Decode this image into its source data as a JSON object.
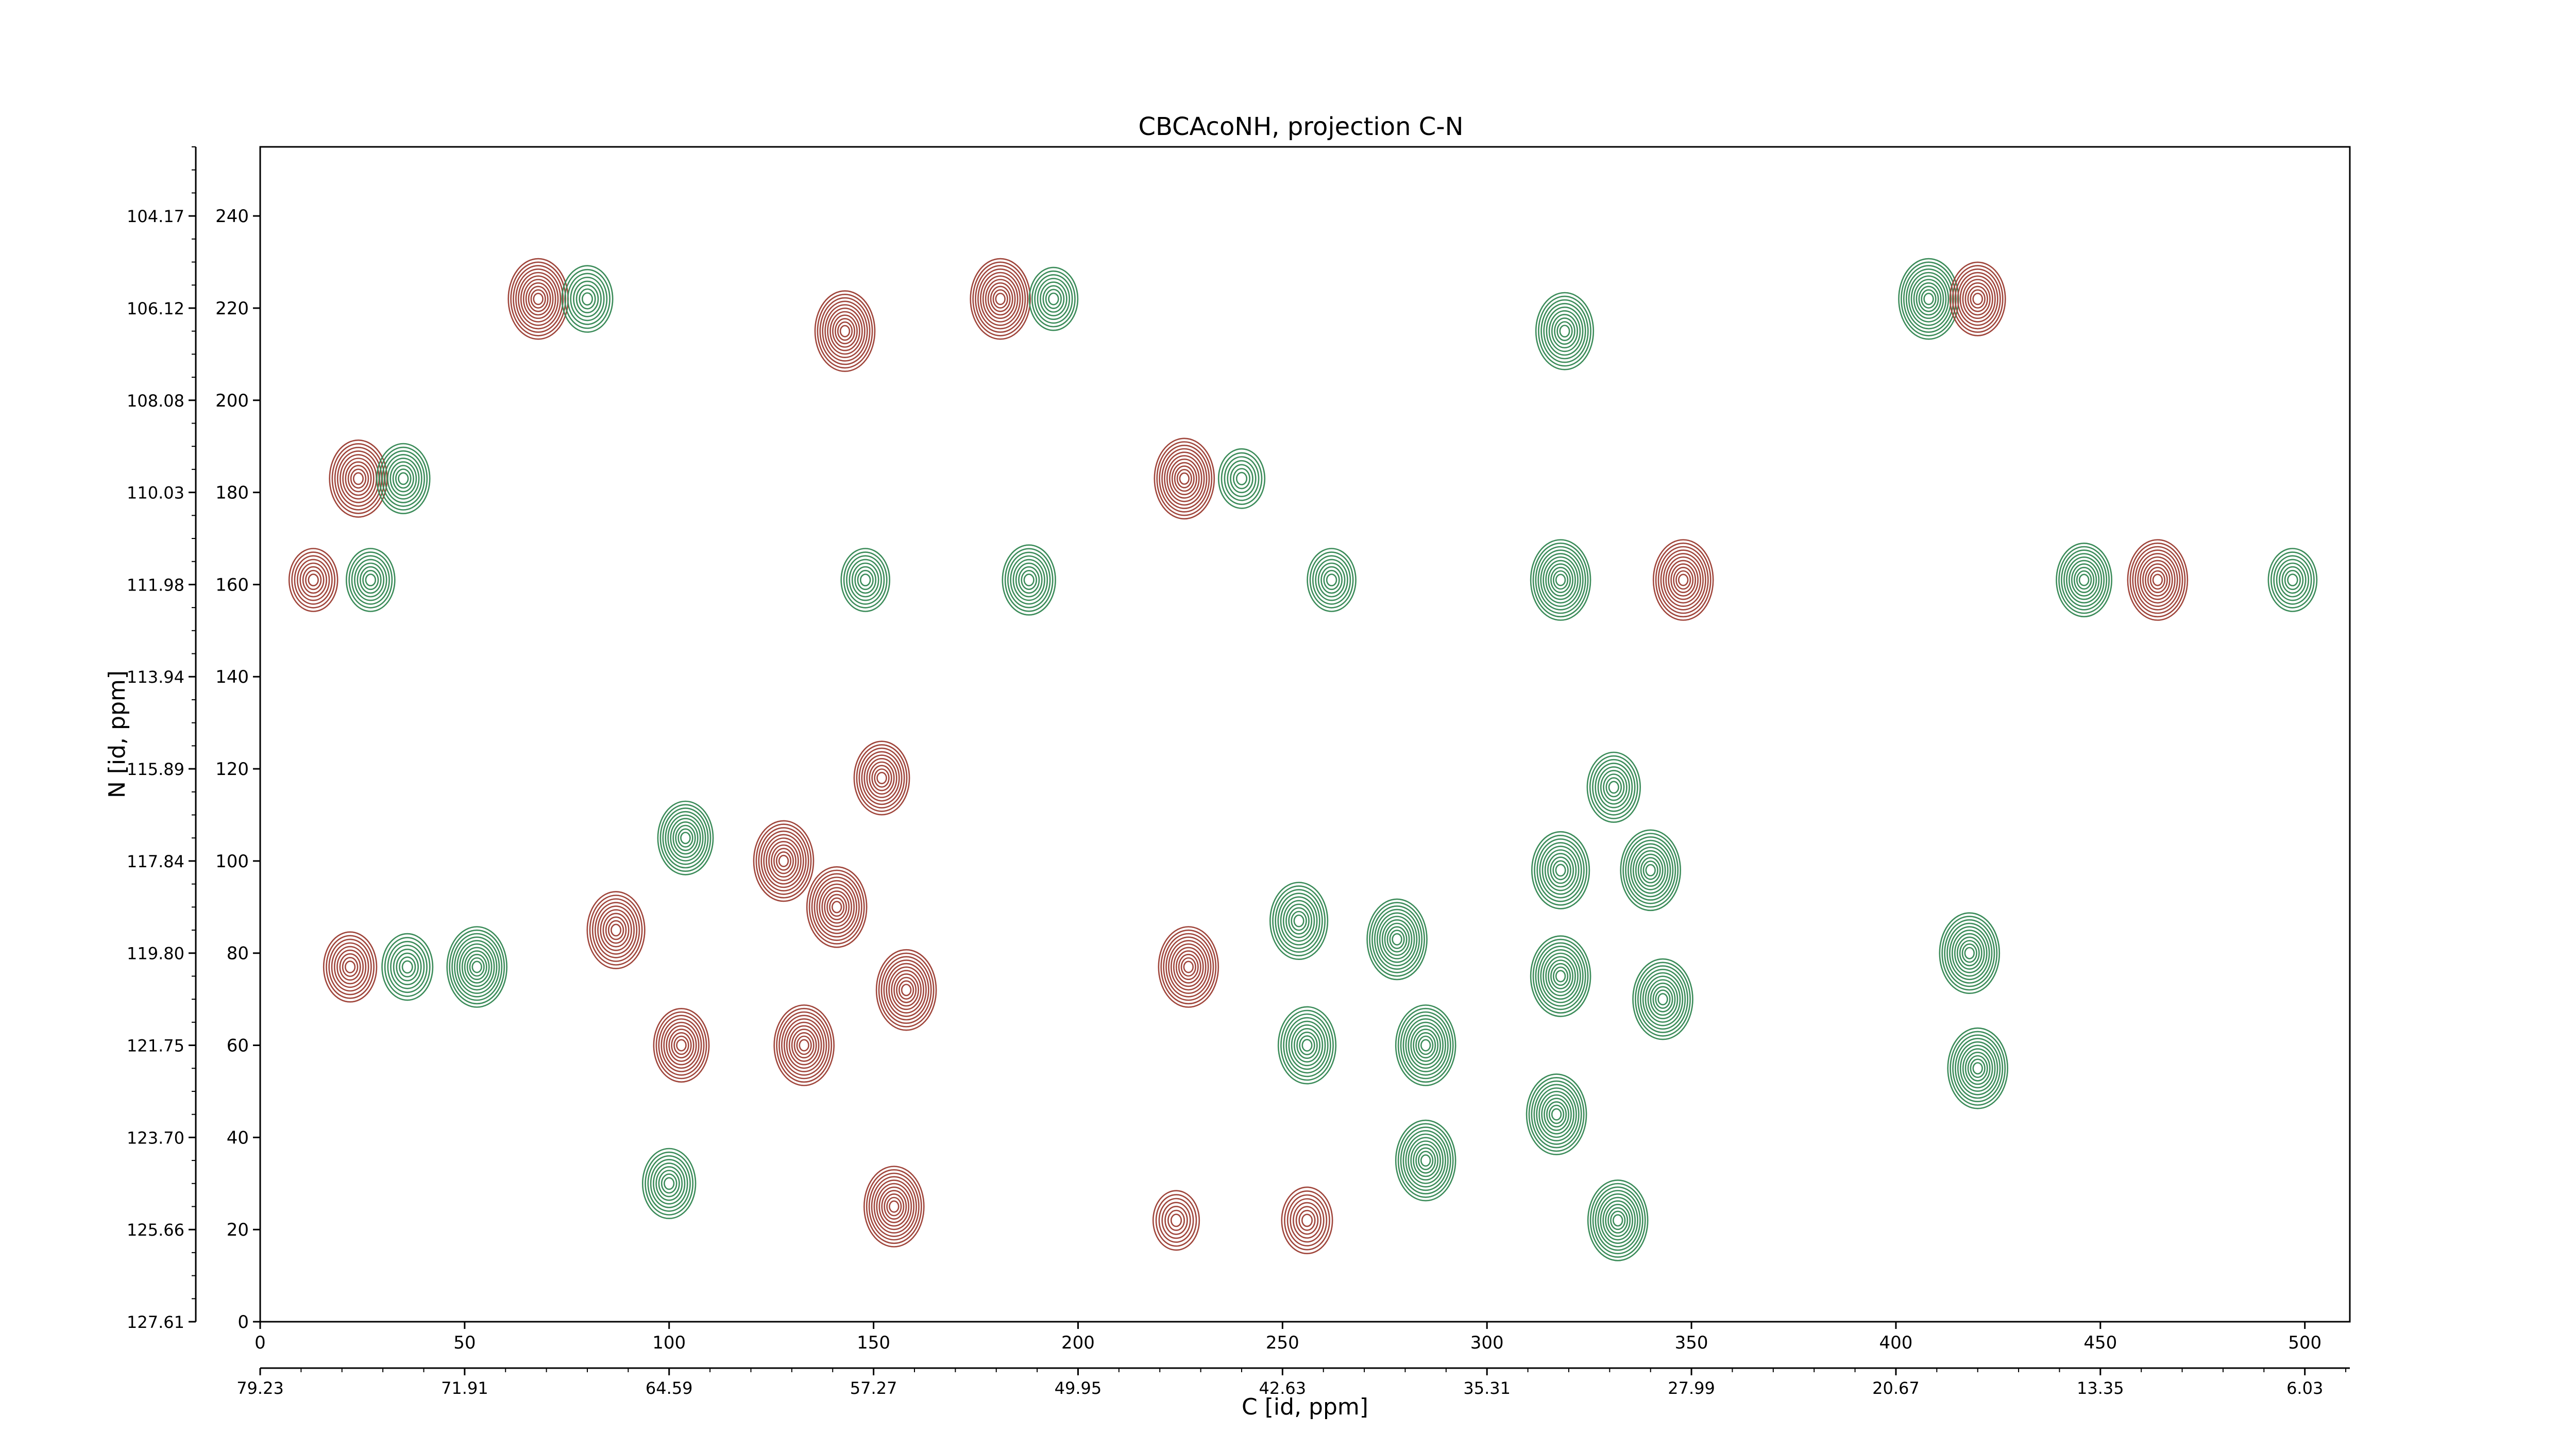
{
  "chart_data": {
    "type": "contour",
    "title": "CBCAcoNH, projection C-N",
    "xlabel": "C [id, ppm]",
    "ylabel": "N [id, ppm]",
    "x_index_ticks": [
      "0",
      "50",
      "100",
      "150",
      "200",
      "250",
      "300",
      "350",
      "400",
      "450",
      "500"
    ],
    "x_ppm_ticks": [
      "79.23",
      "71.91",
      "64.59",
      "57.27",
      "49.95",
      "42.63",
      "35.31",
      "27.99",
      "20.67",
      "13.35",
      "6.03"
    ],
    "y_index_ticks": [
      "0",
      "20",
      "40",
      "60",
      "80",
      "100",
      "120",
      "140",
      "160",
      "180",
      "200",
      "220",
      "240"
    ],
    "y_ppm_ticks": [
      "127.61",
      "125.66",
      "123.70",
      "121.75",
      "119.80",
      "117.84",
      "115.89",
      "113.94",
      "111.98",
      "110.03",
      "108.08",
      "106.12",
      "104.17"
    ],
    "xlim": [
      0,
      511
    ],
    "ylim": [
      0,
      255
    ],
    "colors": {
      "positive": "#a0463c",
      "negative": "#3c8c5a"
    },
    "peaks": [
      {
        "x": 68,
        "y": 222,
        "sign": "positive",
        "amp": 1.0
      },
      {
        "x": 80,
        "y": 222,
        "sign": "negative",
        "amp": 0.6
      },
      {
        "x": 143,
        "y": 215,
        "sign": "positive",
        "amp": 1.0
      },
      {
        "x": 181,
        "y": 222,
        "sign": "positive",
        "amp": 1.0
      },
      {
        "x": 194,
        "y": 222,
        "sign": "negative",
        "amp": 0.5
      },
      {
        "x": 319,
        "y": 215,
        "sign": "negative",
        "amp": 0.9
      },
      {
        "x": 408,
        "y": 222,
        "sign": "negative",
        "amp": 1.0
      },
      {
        "x": 420,
        "y": 222,
        "sign": "positive",
        "amp": 0.8
      },
      {
        "x": 24,
        "y": 183,
        "sign": "positive",
        "amp": 0.9
      },
      {
        "x": 35,
        "y": 183,
        "sign": "negative",
        "amp": 0.7
      },
      {
        "x": 226,
        "y": 183,
        "sign": "positive",
        "amp": 1.0
      },
      {
        "x": 240,
        "y": 183,
        "sign": "negative",
        "amp": 0.4
      },
      {
        "x": 13,
        "y": 161,
        "sign": "positive",
        "amp": 0.5
      },
      {
        "x": 27,
        "y": 161,
        "sign": "negative",
        "amp": 0.5
      },
      {
        "x": 148,
        "y": 161,
        "sign": "negative",
        "amp": 0.5
      },
      {
        "x": 188,
        "y": 161,
        "sign": "negative",
        "amp": 0.7
      },
      {
        "x": 262,
        "y": 161,
        "sign": "negative",
        "amp": 0.5
      },
      {
        "x": 318,
        "y": 161,
        "sign": "negative",
        "amp": 1.0
      },
      {
        "x": 348,
        "y": 161,
        "sign": "positive",
        "amp": 1.0
      },
      {
        "x": 446,
        "y": 161,
        "sign": "negative",
        "amp": 0.8
      },
      {
        "x": 464,
        "y": 161,
        "sign": "positive",
        "amp": 1.0
      },
      {
        "x": 497,
        "y": 161,
        "sign": "negative",
        "amp": 0.5
      },
      {
        "x": 152,
        "y": 118,
        "sign": "positive",
        "amp": 0.8
      },
      {
        "x": 104,
        "y": 105,
        "sign": "negative",
        "amp": 0.8
      },
      {
        "x": 87,
        "y": 85,
        "sign": "positive",
        "amp": 0.9
      },
      {
        "x": 128,
        "y": 100,
        "sign": "positive",
        "amp": 1.0
      },
      {
        "x": 141,
        "y": 90,
        "sign": "positive",
        "amp": 1.0
      },
      {
        "x": 133,
        "y": 60,
        "sign": "positive",
        "amp": 1.0
      },
      {
        "x": 158,
        "y": 72,
        "sign": "positive",
        "amp": 1.0
      },
      {
        "x": 155,
        "y": 25,
        "sign": "positive",
        "amp": 1.0
      },
      {
        "x": 103,
        "y": 60,
        "sign": "positive",
        "amp": 0.8
      },
      {
        "x": 100,
        "y": 30,
        "sign": "negative",
        "amp": 0.7
      },
      {
        "x": 22,
        "y": 77,
        "sign": "positive",
        "amp": 0.7
      },
      {
        "x": 36,
        "y": 77,
        "sign": "negative",
        "amp": 0.6
      },
      {
        "x": 53,
        "y": 77,
        "sign": "negative",
        "amp": 1.0
      },
      {
        "x": 227,
        "y": 77,
        "sign": "positive",
        "amp": 1.0
      },
      {
        "x": 254,
        "y": 87,
        "sign": "negative",
        "amp": 0.9
      },
      {
        "x": 256,
        "y": 60,
        "sign": "negative",
        "amp": 0.9
      },
      {
        "x": 278,
        "y": 83,
        "sign": "negative",
        "amp": 1.0
      },
      {
        "x": 285,
        "y": 60,
        "sign": "negative",
        "amp": 1.0
      },
      {
        "x": 285,
        "y": 35,
        "sign": "negative",
        "amp": 1.0
      },
      {
        "x": 318,
        "y": 98,
        "sign": "negative",
        "amp": 0.9
      },
      {
        "x": 318,
        "y": 75,
        "sign": "negative",
        "amp": 1.0
      },
      {
        "x": 317,
        "y": 45,
        "sign": "negative",
        "amp": 1.0
      },
      {
        "x": 331,
        "y": 116,
        "sign": "negative",
        "amp": 0.7
      },
      {
        "x": 340,
        "y": 98,
        "sign": "negative",
        "amp": 1.0
      },
      {
        "x": 343,
        "y": 70,
        "sign": "negative",
        "amp": 1.0
      },
      {
        "x": 332,
        "y": 22,
        "sign": "negative",
        "amp": 1.0
      },
      {
        "x": 418,
        "y": 80,
        "sign": "negative",
        "amp": 1.0
      },
      {
        "x": 420,
        "y": 55,
        "sign": "negative",
        "amp": 1.0
      },
      {
        "x": 256,
        "y": 22,
        "sign": "positive",
        "amp": 0.6
      },
      {
        "x": 224,
        "y": 22,
        "sign": "positive",
        "amp": 0.4
      }
    ]
  }
}
